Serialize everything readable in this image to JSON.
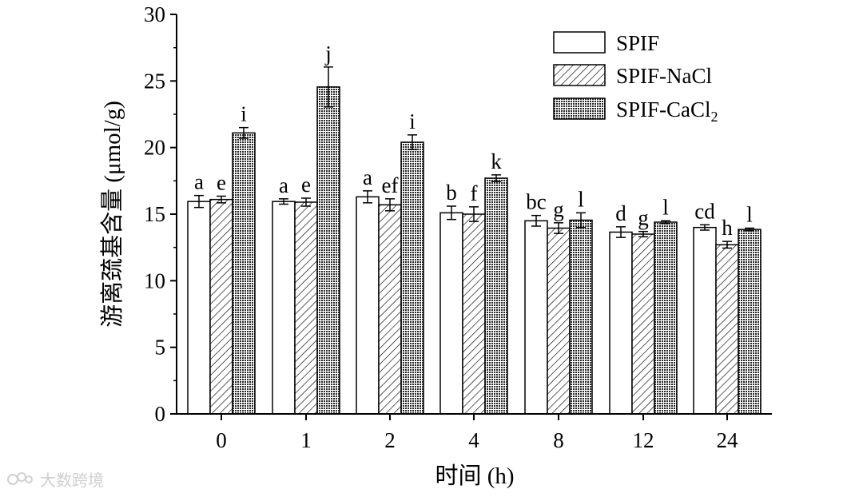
{
  "watermark": "大数跨境",
  "chart_data": {
    "type": "bar",
    "xlabel": "时间 (h)",
    "ylabel": "游离巯基含量 (μmol/g)",
    "ylim": [
      0,
      30
    ],
    "yticks": [
      0,
      5,
      10,
      15,
      20,
      25,
      30
    ],
    "categories": [
      "0",
      "1",
      "2",
      "4",
      "8",
      "12",
      "24"
    ],
    "legend_position": "top-right",
    "grid": false,
    "series": [
      {
        "name": "SPIF",
        "pattern": "none",
        "values": [
          15.95,
          15.95,
          16.3,
          15.1,
          14.5,
          13.65,
          14.0
        ],
        "errors": [
          0.45,
          0.2,
          0.45,
          0.5,
          0.4,
          0.4,
          0.2
        ],
        "letters": [
          "a",
          "a",
          "a",
          "b",
          "bc",
          "d",
          "cd"
        ]
      },
      {
        "name": "SPIF-NaCl",
        "pattern": "diagonal",
        "values": [
          16.1,
          15.9,
          15.7,
          15.0,
          13.95,
          13.5,
          12.7
        ],
        "errors": [
          0.25,
          0.3,
          0.45,
          0.55,
          0.4,
          0.2,
          0.25
        ],
        "letters": [
          "e",
          "e",
          "ef",
          "f",
          "g",
          "g",
          "h"
        ]
      },
      {
        "name": "SPIF-CaCl2",
        "pattern": "crosshatch",
        "values": [
          21.1,
          24.55,
          20.4,
          17.7,
          14.55,
          14.4,
          13.85
        ],
        "errors": [
          0.4,
          1.5,
          0.55,
          0.25,
          0.55,
          0.1,
          0.1
        ],
        "letters": [
          "i",
          "j",
          "i",
          "k",
          "l",
          "l",
          "l"
        ]
      }
    ]
  }
}
